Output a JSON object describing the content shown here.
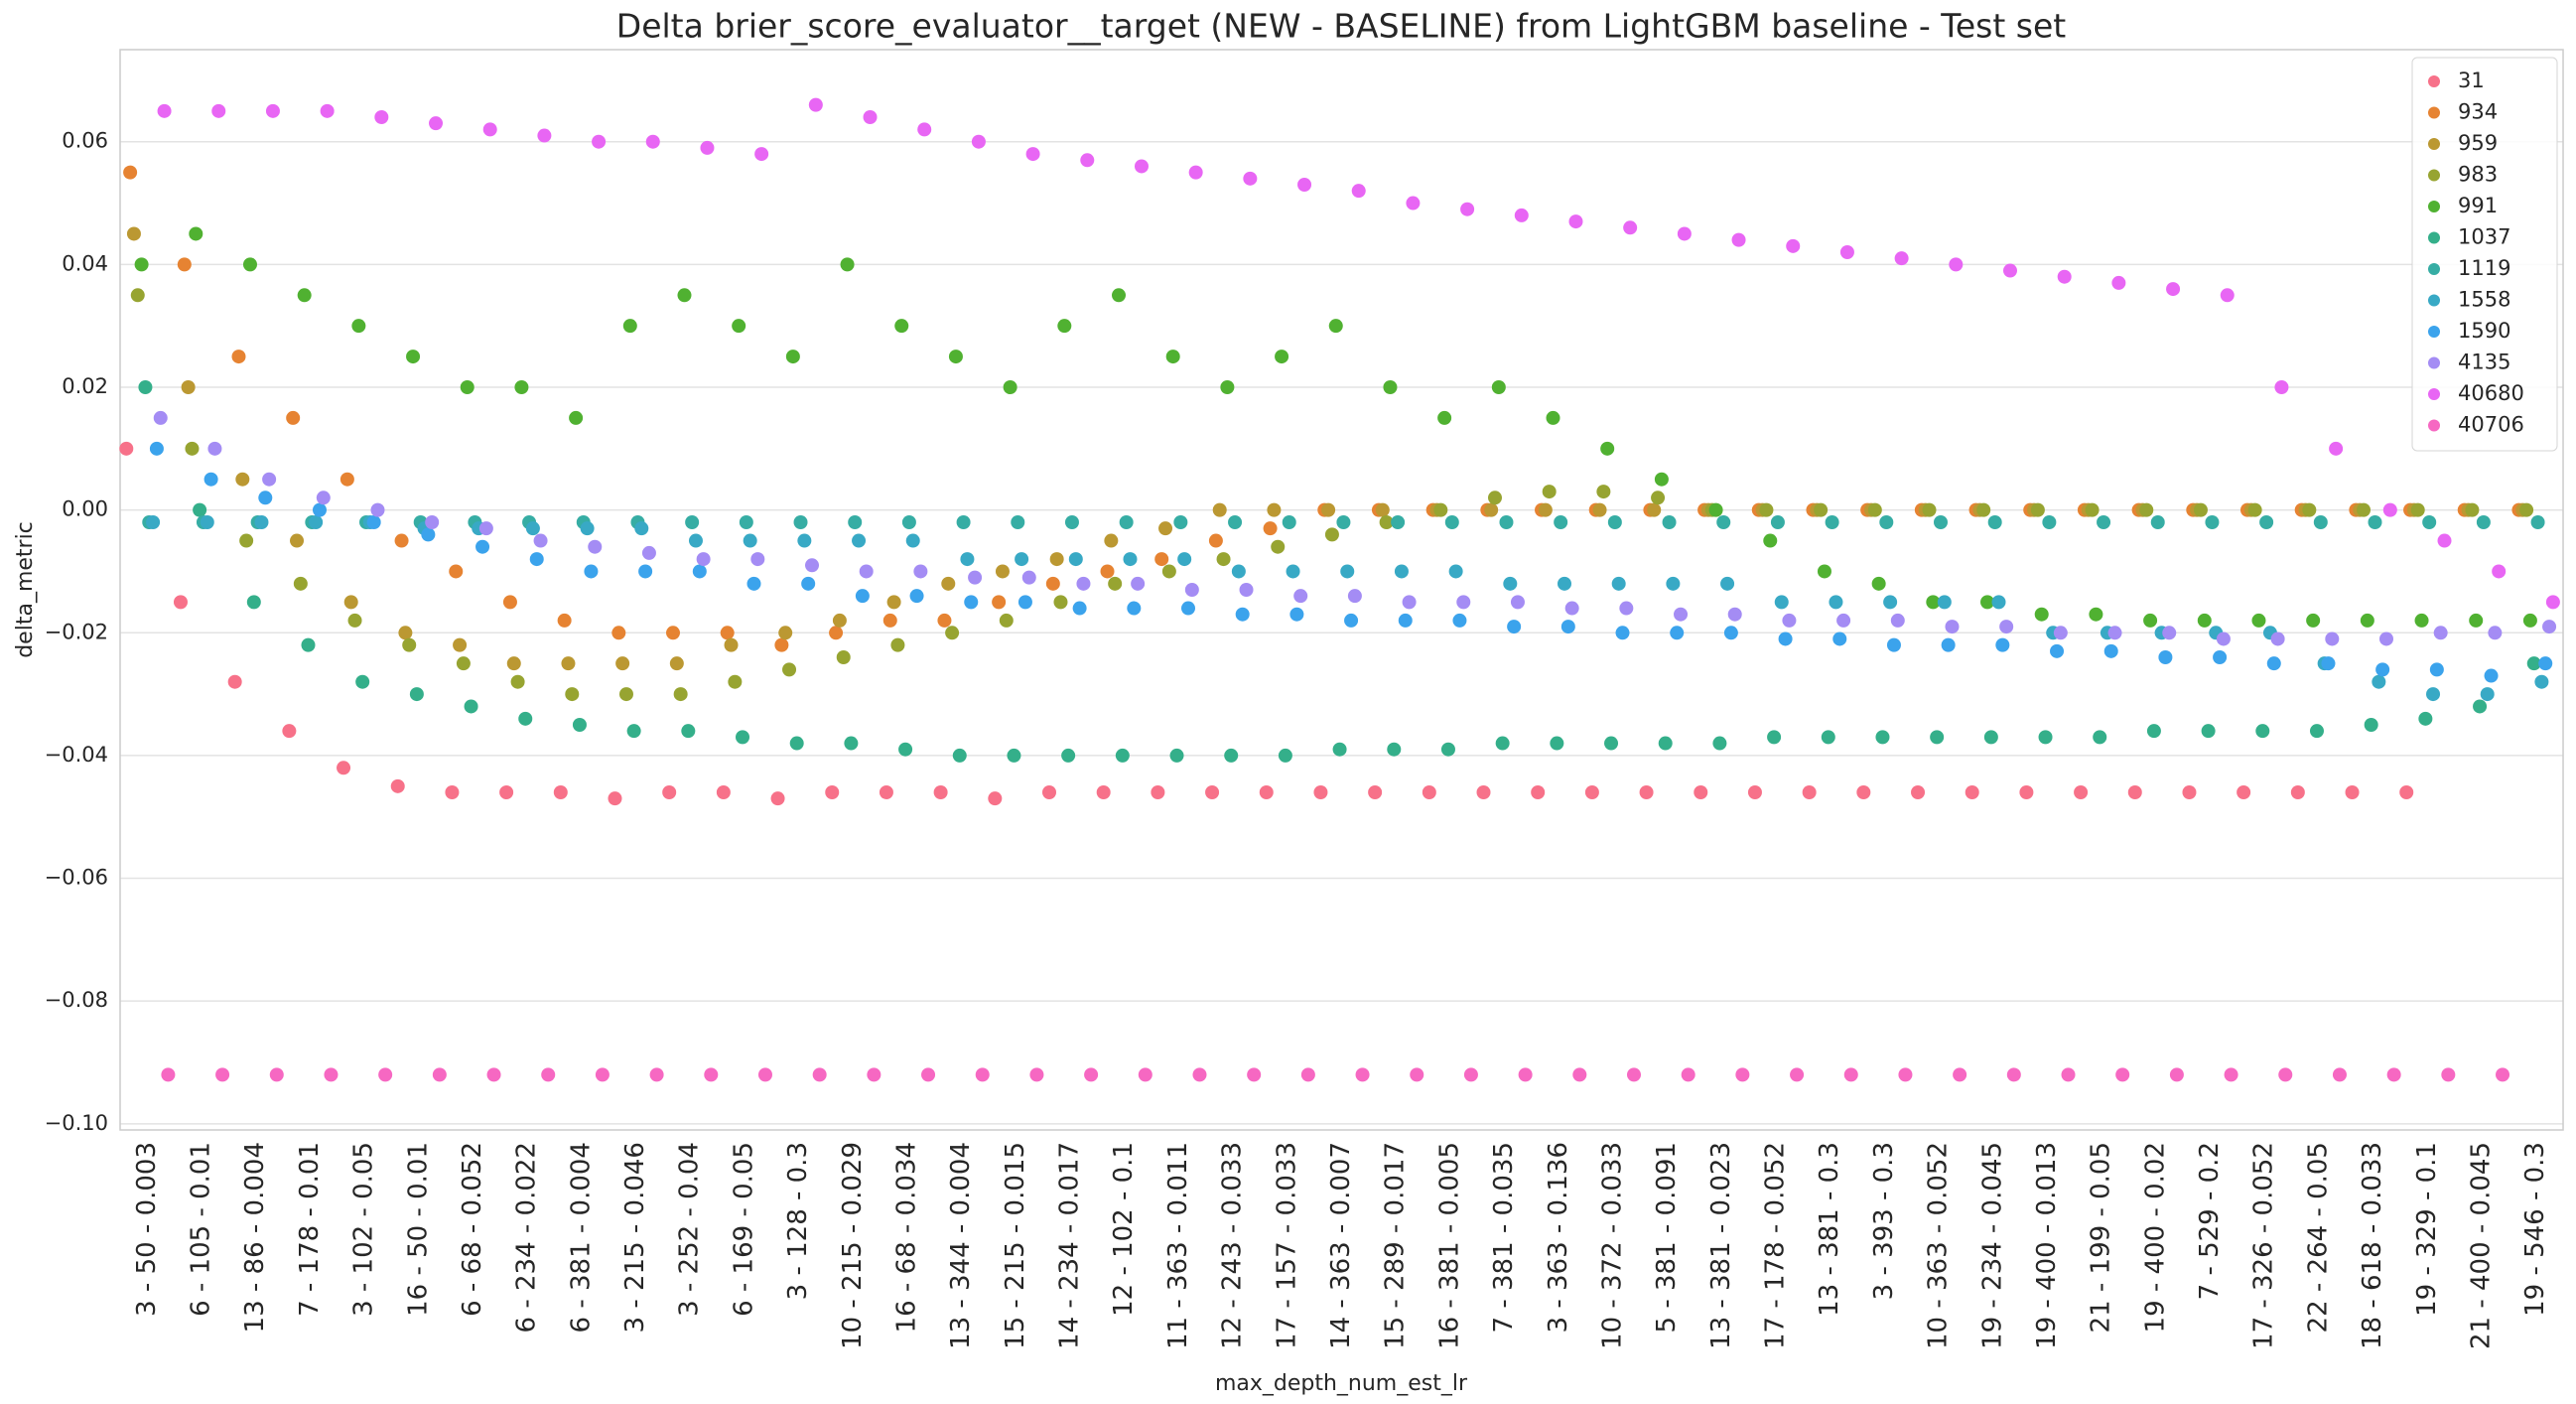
{
  "chart_data": {
    "type": "scatter",
    "title": "Delta brier_score_evaluator__target (NEW - BASELINE) from LightGBM baseline - Test set",
    "x_label": "max_depth_num_est_lr",
    "y_label": "delta_metric",
    "categories": [
      "3 - 50 - 0.003",
      "6 - 105 - 0.01",
      "13 - 86 - 0.004",
      "7 - 178 - 0.01",
      "3 - 102 - 0.05",
      "16 - 50 - 0.01",
      "6 - 68 - 0.052",
      "6 - 234 - 0.022",
      "6 - 381 - 0.004",
      "3 - 215 - 0.046",
      "3 - 252 - 0.04",
      "6 - 169 - 0.05",
      "3 - 128 - 0.3",
      "10 - 215 - 0.029",
      "16 - 68 - 0.034",
      "13 - 344 - 0.004",
      "15 - 215 - 0.015",
      "14 - 234 - 0.017",
      "12 - 102 - 0.1",
      "11 - 363 - 0.011",
      "12 - 243 - 0.033",
      "17 - 157 - 0.033",
      "14 - 363 - 0.007",
      "15 - 289 - 0.017",
      "16 - 381 - 0.005",
      "7 - 381 - 0.035",
      "3 - 363 - 0.136",
      "10 - 372 - 0.033",
      "5 - 381 - 0.091",
      "13 - 381 - 0.023",
      "17 - 178 - 0.052",
      "13 - 381 - 0.3",
      "3 - 393 - 0.3",
      "10 - 363 - 0.052",
      "19 - 234 - 0.045",
      "19 - 400 - 0.013",
      "21 - 199 - 0.05",
      "19 - 400 - 0.02",
      "7 - 529 - 0.2",
      "17 - 326 - 0.052",
      "22 - 264 - 0.05",
      "18 - 618 - 0.033",
      "19 - 329 - 0.1",
      "21 - 400 - 0.045",
      "19 - 546 - 0.3"
    ],
    "ylim": [
      -0.101,
      0.075
    ],
    "yticks": [
      {
        "value": -0.1,
        "label": "−0.10"
      },
      {
        "value": -0.08,
        "label": "−0.08"
      },
      {
        "value": -0.06,
        "label": "−0.06"
      },
      {
        "value": -0.04,
        "label": "−0.04"
      },
      {
        "value": -0.02,
        "label": "−0.02"
      },
      {
        "value": 0,
        "label": "0.00"
      },
      0.02,
      0.04,
      0.06
    ],
    "grid": true,
    "legend": "upper right",
    "series": [
      {
        "name": "31",
        "color": "#f77189",
        "values": [
          0.01,
          -0.015,
          -0.028,
          -0.036,
          -0.042,
          -0.045,
          -0.046,
          -0.046,
          -0.046,
          -0.047,
          -0.046,
          -0.046,
          -0.047,
          -0.046,
          -0.046,
          -0.046,
          -0.047,
          -0.046,
          -0.046,
          -0.046,
          -0.046,
          -0.046,
          -0.046,
          -0.046,
          -0.046,
          -0.046,
          -0.046,
          -0.046,
          -0.046,
          -0.046,
          -0.046,
          -0.046,
          -0.046,
          -0.046,
          -0.046,
          -0.046,
          -0.046,
          -0.046,
          -0.046,
          -0.046,
          -0.046,
          -0.046,
          -0.046,
          null,
          null
        ]
      },
      {
        "name": "934",
        "color": "#e68332",
        "values": [
          0.055,
          0.04,
          0.025,
          0.015,
          0.005,
          -0.005,
          -0.01,
          -0.015,
          -0.018,
          -0.02,
          -0.02,
          -0.02,
          -0.022,
          -0.02,
          -0.018,
          -0.018,
          -0.015,
          -0.012,
          -0.01,
          -0.008,
          -0.005,
          -0.003,
          0,
          0,
          0,
          0,
          0,
          0,
          0,
          0,
          0,
          0,
          0,
          0,
          0,
          0,
          0,
          0,
          0,
          0,
          0,
          0,
          0,
          0,
          0
        ]
      },
      {
        "name": "959",
        "color": "#bb9832",
        "values": [
          0.045,
          0.02,
          0.005,
          -0.005,
          -0.015,
          -0.02,
          -0.022,
          -0.025,
          -0.025,
          -0.025,
          -0.025,
          -0.022,
          -0.02,
          -0.018,
          -0.015,
          -0.012,
          -0.01,
          -0.008,
          -0.005,
          -0.003,
          0,
          0,
          0,
          0,
          0,
          0,
          0,
          0,
          0,
          0,
          0,
          0,
          0,
          0,
          0,
          0,
          0,
          0,
          0,
          0,
          0,
          0,
          0,
          0,
          0
        ]
      },
      {
        "name": "983",
        "color": "#97a431",
        "values": [
          0.035,
          0.01,
          -0.005,
          -0.012,
          -0.018,
          -0.022,
          -0.025,
          -0.028,
          -0.03,
          -0.03,
          -0.03,
          -0.028,
          -0.026,
          -0.024,
          -0.022,
          -0.02,
          -0.018,
          -0.015,
          -0.012,
          -0.01,
          -0.008,
          -0.006,
          -0.004,
          -0.002,
          0,
          0.002,
          0.003,
          0.003,
          0.002,
          0,
          0,
          0,
          0,
          0,
          0,
          0,
          0,
          0,
          0,
          0,
          0,
          0,
          0,
          0,
          0
        ]
      },
      {
        "name": "991",
        "color": "#50b131",
        "values": [
          0.04,
          0.045,
          0.04,
          0.035,
          0.03,
          0.025,
          0.02,
          0.02,
          0.015,
          0.03,
          0.035,
          0.03,
          0.025,
          0.04,
          0.03,
          0.025,
          0.02,
          0.03,
          0.035,
          0.025,
          0.02,
          0.025,
          0.03,
          0.02,
          0.015,
          0.02,
          0.015,
          0.01,
          0.005,
          0,
          -0.005,
          -0.01,
          -0.012,
          -0.015,
          -0.015,
          -0.017,
          -0.017,
          -0.018,
          -0.018,
          -0.018,
          -0.018,
          -0.018,
          -0.018,
          -0.018,
          -0.018
        ]
      },
      {
        "name": "1037",
        "color": "#34af8a",
        "values": [
          0.02,
          0,
          -0.015,
          -0.022,
          -0.028,
          -0.03,
          -0.032,
          -0.034,
          -0.035,
          -0.036,
          -0.036,
          -0.037,
          -0.038,
          -0.038,
          -0.039,
          -0.04,
          -0.04,
          -0.04,
          -0.04,
          -0.04,
          -0.04,
          -0.04,
          -0.039,
          -0.039,
          -0.039,
          -0.038,
          -0.038,
          -0.038,
          -0.038,
          -0.038,
          -0.037,
          -0.037,
          -0.037,
          -0.037,
          -0.037,
          -0.037,
          -0.037,
          -0.036,
          -0.036,
          -0.036,
          -0.036,
          -0.035,
          -0.034,
          -0.032,
          -0.025
        ]
      },
      {
        "name": "1119",
        "color": "#36ada4",
        "values": [
          -0.002,
          -0.002,
          -0.002,
          -0.002,
          -0.002,
          -0.002,
          -0.002,
          -0.002,
          -0.002,
          -0.002,
          -0.002,
          -0.002,
          -0.002,
          -0.002,
          -0.002,
          -0.002,
          -0.002,
          -0.002,
          -0.002,
          -0.002,
          -0.002,
          -0.002,
          -0.002,
          -0.002,
          -0.002,
          -0.002,
          -0.002,
          -0.002,
          -0.002,
          -0.002,
          -0.002,
          -0.002,
          -0.002,
          -0.002,
          -0.002,
          -0.002,
          -0.002,
          -0.002,
          -0.002,
          -0.002,
          -0.002,
          -0.002,
          -0.002,
          -0.002,
          -0.002
        ]
      },
      {
        "name": "1558",
        "color": "#38a9c5",
        "values": [
          -0.002,
          -0.002,
          -0.002,
          -0.002,
          -0.002,
          -0.003,
          -0.003,
          -0.003,
          -0.003,
          -0.003,
          -0.005,
          -0.005,
          -0.005,
          -0.005,
          -0.005,
          -0.008,
          -0.008,
          -0.008,
          -0.008,
          -0.008,
          -0.01,
          -0.01,
          -0.01,
          -0.01,
          -0.01,
          -0.012,
          -0.012,
          -0.012,
          -0.012,
          -0.012,
          -0.015,
          -0.015,
          -0.015,
          -0.015,
          -0.015,
          -0.02,
          -0.02,
          -0.02,
          -0.02,
          -0.02,
          -0.025,
          -0.028,
          -0.03,
          -0.03,
          -0.028
        ]
      },
      {
        "name": "1590",
        "color": "#3ba3ec",
        "values": [
          0.01,
          0.005,
          0.002,
          0,
          -0.002,
          -0.004,
          -0.006,
          -0.008,
          -0.01,
          -0.01,
          -0.01,
          -0.012,
          -0.012,
          -0.014,
          -0.014,
          -0.015,
          -0.015,
          -0.016,
          -0.016,
          -0.016,
          -0.017,
          -0.017,
          -0.018,
          -0.018,
          -0.018,
          -0.019,
          -0.019,
          -0.02,
          -0.02,
          -0.02,
          -0.021,
          -0.021,
          -0.022,
          -0.022,
          -0.022,
          -0.023,
          -0.023,
          -0.024,
          -0.024,
          -0.025,
          -0.025,
          -0.026,
          -0.026,
          -0.027,
          -0.025
        ]
      },
      {
        "name": "4135",
        "color": "#a48cf4",
        "values": [
          0.015,
          0.01,
          0.005,
          0.002,
          0,
          -0.002,
          -0.003,
          -0.005,
          -0.006,
          -0.007,
          -0.008,
          -0.008,
          -0.009,
          -0.01,
          -0.01,
          -0.011,
          -0.011,
          -0.012,
          -0.012,
          -0.013,
          -0.013,
          -0.014,
          -0.014,
          -0.015,
          -0.015,
          -0.015,
          -0.016,
          -0.016,
          -0.017,
          -0.017,
          -0.018,
          -0.018,
          -0.018,
          -0.019,
          -0.019,
          -0.02,
          -0.02,
          -0.02,
          -0.021,
          -0.021,
          -0.021,
          -0.021,
          -0.02,
          -0.02,
          -0.019
        ]
      },
      {
        "name": "40680",
        "color": "#e866f4",
        "values": [
          0.065,
          0.065,
          0.065,
          0.065,
          0.064,
          0.063,
          0.062,
          0.061,
          0.06,
          0.06,
          0.059,
          0.058,
          0.066,
          0.064,
          0.062,
          0.06,
          0.058,
          0.057,
          0.056,
          0.055,
          0.054,
          0.053,
          0.052,
          0.05,
          0.049,
          0.048,
          0.047,
          0.046,
          0.045,
          0.044,
          0.043,
          0.042,
          0.041,
          0.04,
          0.039,
          0.038,
          0.037,
          0.036,
          0.035,
          0.02,
          0.01,
          0,
          -0.005,
          -0.01,
          -0.015
        ]
      },
      {
        "name": "40706",
        "color": "#f668c2",
        "values": [
          -0.092,
          -0.092,
          -0.092,
          -0.092,
          -0.092,
          -0.092,
          -0.092,
          -0.092,
          -0.092,
          -0.092,
          -0.092,
          -0.092,
          -0.092,
          -0.092,
          -0.092,
          -0.092,
          -0.092,
          -0.092,
          -0.092,
          -0.092,
          -0.092,
          -0.092,
          -0.092,
          -0.092,
          -0.092,
          -0.092,
          -0.092,
          -0.092,
          -0.092,
          -0.092,
          -0.092,
          -0.092,
          -0.092,
          -0.092,
          -0.092,
          -0.092,
          -0.092,
          -0.092,
          -0.092,
          -0.092,
          -0.092,
          -0.092,
          -0.092,
          -0.092,
          null
        ]
      }
    ]
  }
}
